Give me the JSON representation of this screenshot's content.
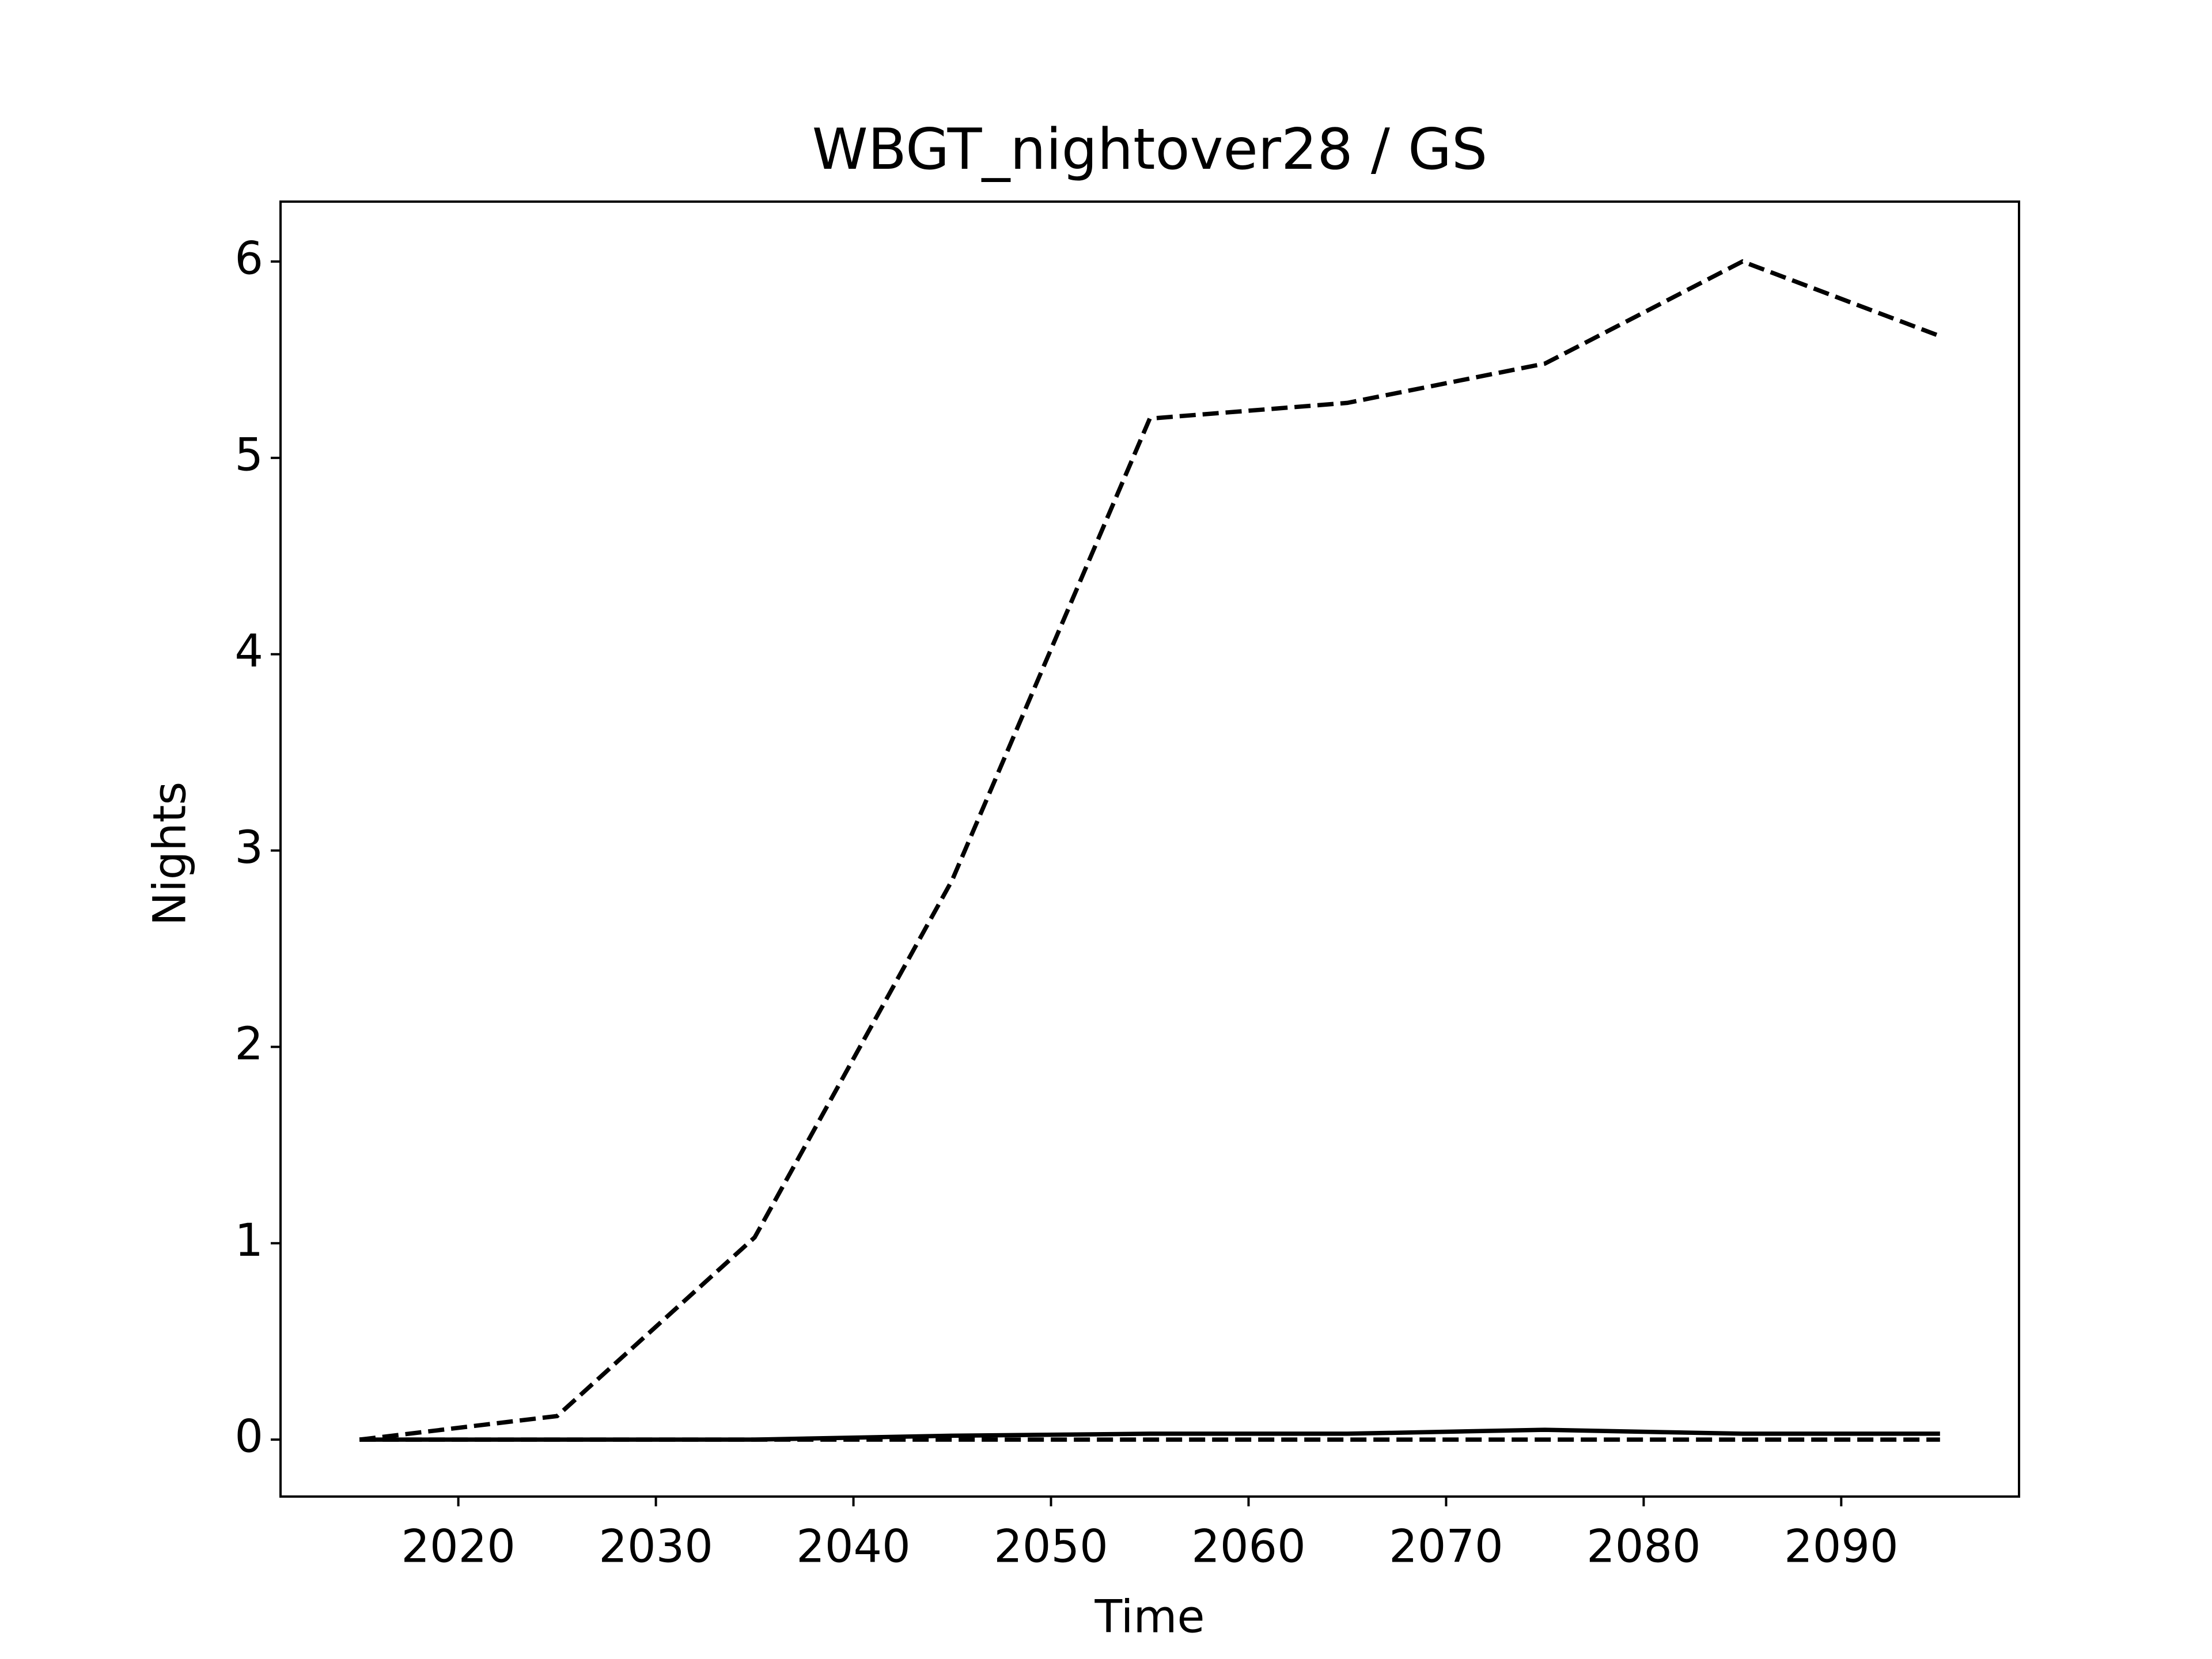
{
  "chart_data": {
    "type": "line",
    "title": "WBGT_nightover28 / GS",
    "x_label": "Time",
    "y_label": "Nights",
    "x": [
      2015,
      2025,
      2035,
      2045,
      2055,
      2065,
      2075,
      2085,
      2095
    ],
    "series": [
      {
        "color": "#000000",
        "dash": true,
        "values": [
          0,
          0.12,
          1.03,
          2.85,
          5.2,
          5.28,
          5.48,
          6.0,
          5.62
        ]
      },
      {
        "color": "#000000",
        "dash": false,
        "values": [
          0,
          0,
          0,
          0.02,
          0.03,
          0.03,
          0.05,
          0.03,
          0.03
        ]
      },
      {
        "color": "#000000",
        "dash": true,
        "values": [
          0,
          0,
          0,
          0,
          0,
          0,
          0,
          0,
          0
        ]
      }
    ],
    "xlim": [
      2011,
      2099
    ],
    "xticks": [
      2020,
      2030,
      2040,
      2050,
      2060,
      2070,
      2080,
      2090
    ],
    "ylim": [
      -0.29,
      6.305
    ],
    "yticks": [
      0,
      1,
      2,
      3,
      4,
      5,
      6
    ],
    "grid": false
  }
}
